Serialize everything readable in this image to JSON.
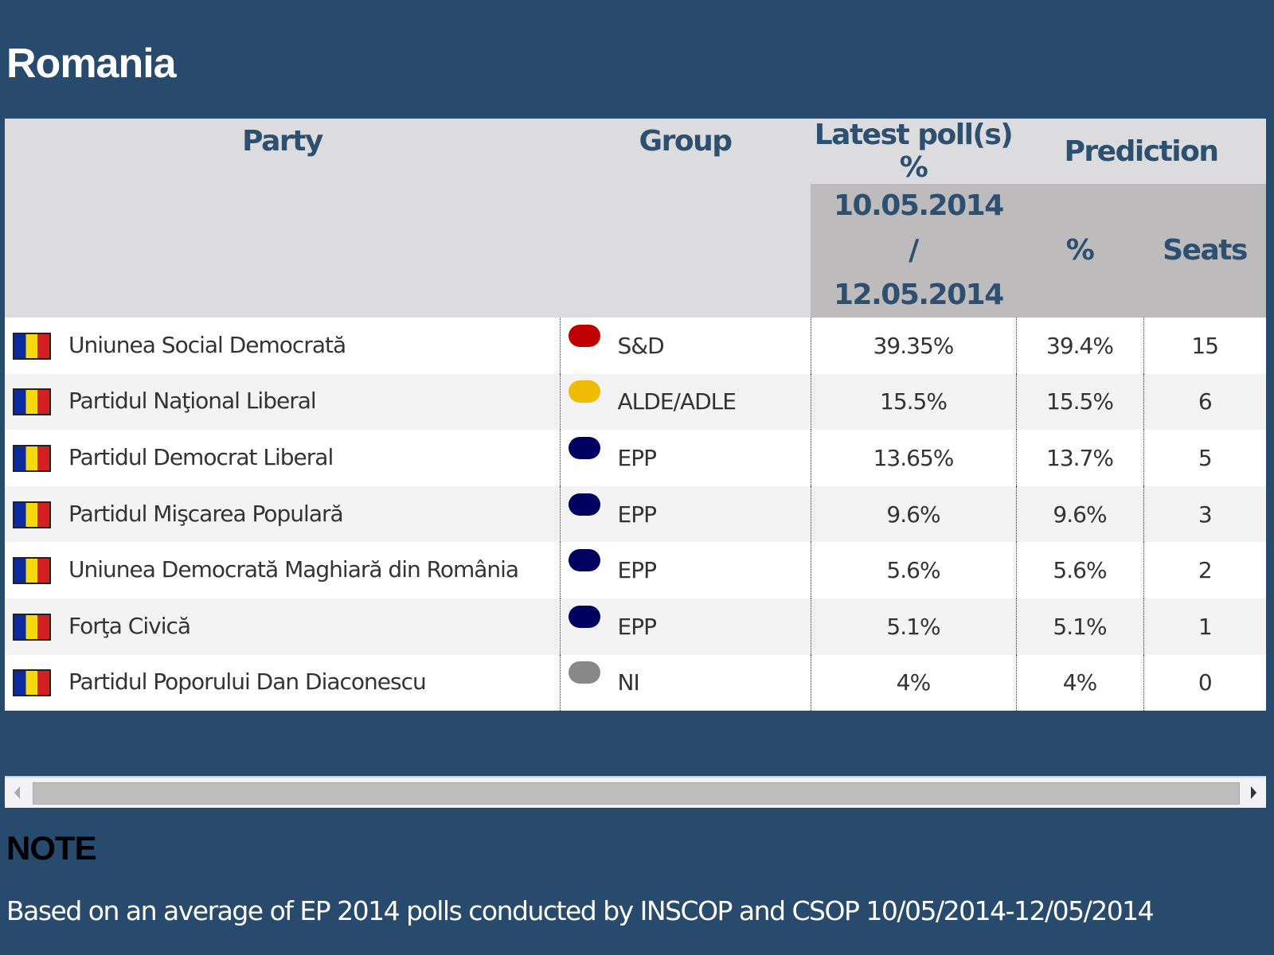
{
  "title": "Romania",
  "headers": {
    "party": "Party",
    "group": "Group",
    "latest_polls": "Latest poll(s) %",
    "prediction": "Prediction",
    "poll_date": "10.05.2014 / 12.05.2014",
    "percent": "%",
    "seats": "Seats"
  },
  "rows": [
    {
      "party": "Uniunea Social Democrată",
      "group": "S&D",
      "group_color": "#c00000",
      "poll": "39.35%",
      "pct": "39.4%",
      "seats": "15"
    },
    {
      "party": "Partidul Naţional Liberal",
      "group": "ALDE/ADLE",
      "group_color": "#f0bc00",
      "poll": "15.5%",
      "pct": "15.5%",
      "seats": "6"
    },
    {
      "party": "Partidul Democrat Liberal",
      "group": "EPP",
      "group_color": "#000060",
      "poll": "13.65%",
      "pct": "13.7%",
      "seats": "5"
    },
    {
      "party": "Partidul Mişcarea Populară",
      "group": "EPP",
      "group_color": "#000060",
      "poll": "9.6%",
      "pct": "9.6%",
      "seats": "3"
    },
    {
      "party": "Uniunea Democrată Maghiară din România",
      "group": "EPP",
      "group_color": "#000060",
      "poll": "5.6%",
      "pct": "5.6%",
      "seats": "2"
    },
    {
      "party": "Forţa Civică",
      "group": "EPP",
      "group_color": "#000060",
      "poll": "5.1%",
      "pct": "5.1%",
      "seats": "1"
    },
    {
      "party": "Partidul Poporului Dan Diaconescu",
      "group": "NI",
      "group_color": "#888888",
      "poll": "4%",
      "pct": "4%",
      "seats": "0"
    }
  ],
  "note": {
    "heading": "NOTE",
    "text": "Based on an average of EP 2014 polls conducted by INSCOP and CSOP 10/05/2014-12/05/2014"
  }
}
